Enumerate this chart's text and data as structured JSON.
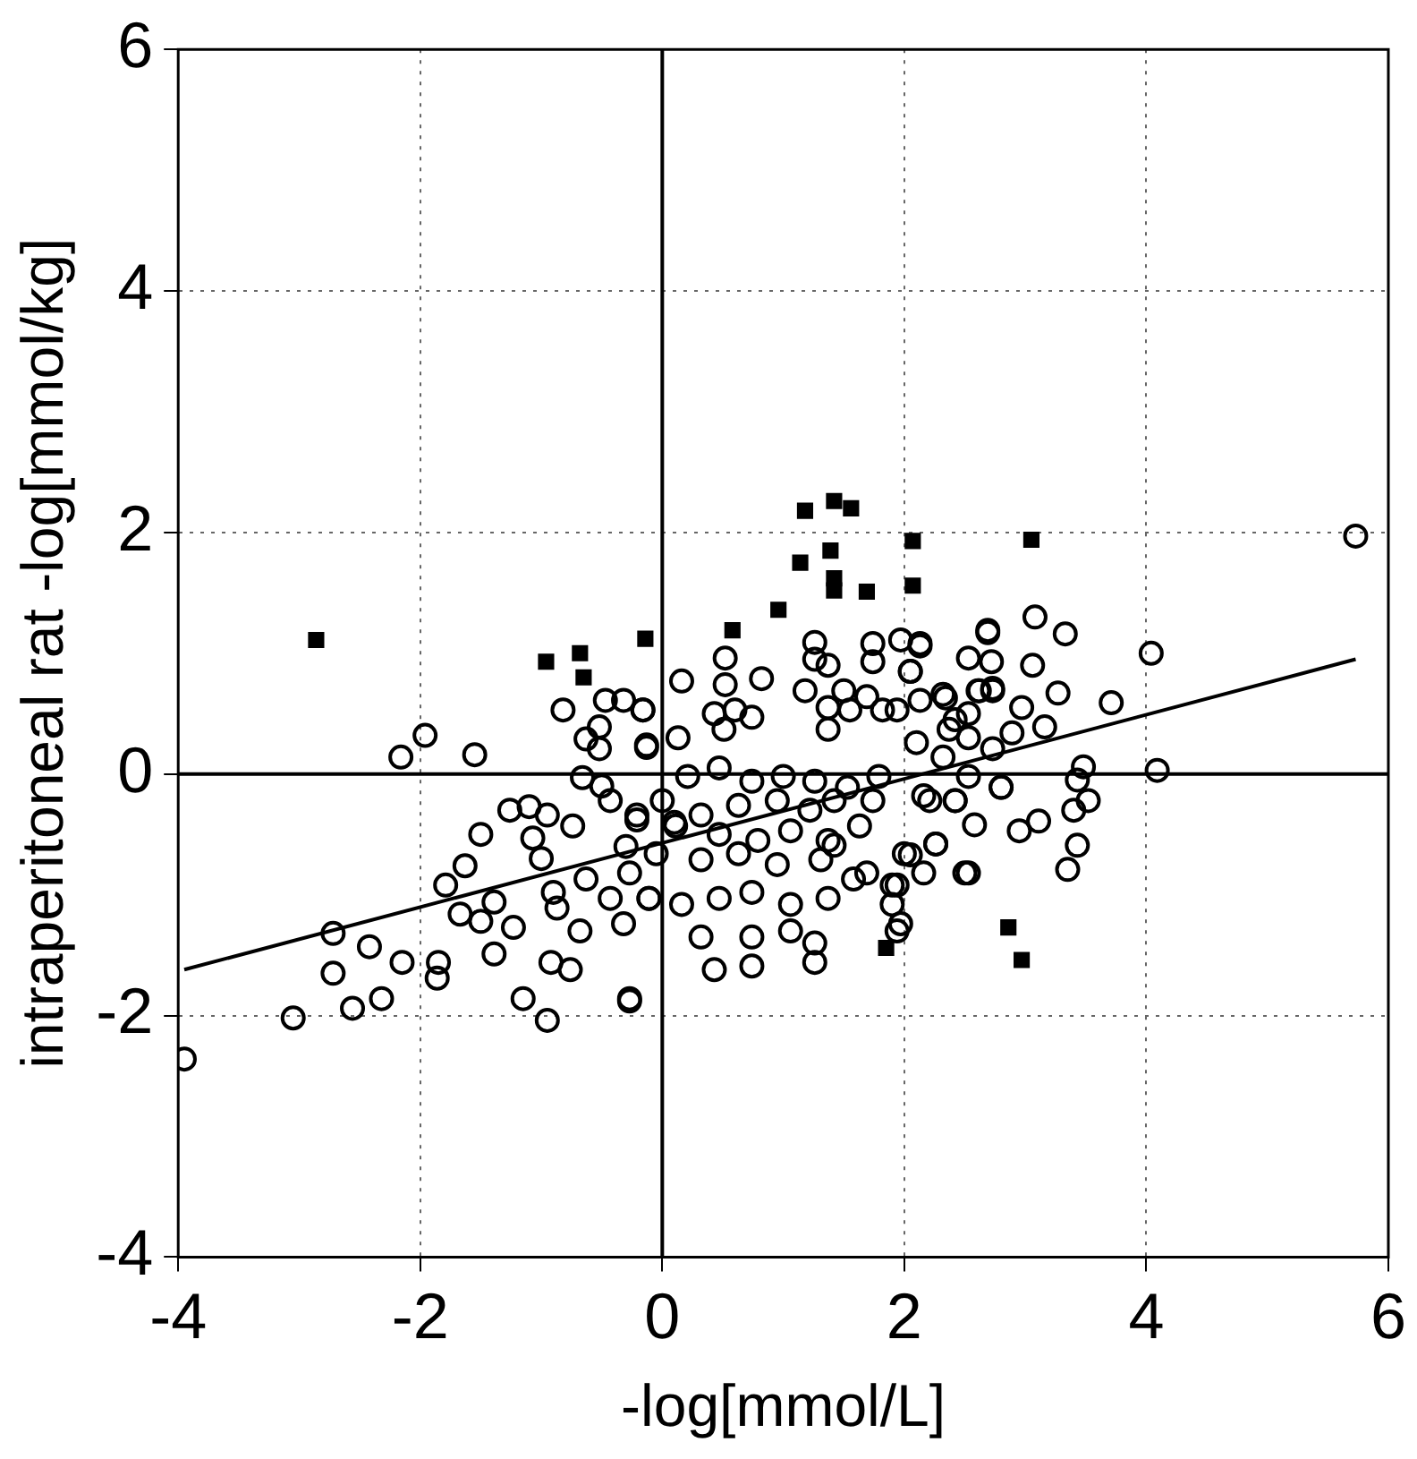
{
  "chart_data": {
    "type": "scatter",
    "xlabel": "-log[mmol/L]",
    "ylabel": "intraperitoneal rat -log[mmol/kg]",
    "xlim": [
      -4,
      6
    ],
    "xticks": [
      -4,
      -2,
      0,
      2,
      4,
      6
    ],
    "ylim": [
      -4,
      6
    ],
    "yticks": [
      -4,
      -2,
      0,
      2,
      4,
      6
    ],
    "grid": true,
    "legend": false,
    "series": [
      {
        "type": "scatter",
        "marker": "circle",
        "color": "#000000",
        "x": [
          -1.96,
          -2.16,
          -1.55,
          -3.95,
          -3.05,
          -2.72,
          -2.42,
          -2.72,
          -2.56,
          -2.32,
          -2.15,
          -1.85,
          -1.86,
          -1.67,
          -1.5,
          -1.79,
          -1.63,
          -1.39,
          -1.23,
          -1.39,
          -1.26,
          -1.07,
          -1.1,
          -0.92,
          -0.76,
          -1.15,
          -0.95,
          -0.27,
          -0.82,
          -0.52,
          -0.63,
          -0.16,
          -0.13,
          -0.47,
          -0.32,
          -0.52,
          -0.66,
          -0.95,
          -0.74,
          -0.43,
          -0.21,
          -0.9,
          -0.63,
          -0.43,
          -0.32,
          -0.11,
          -0.68,
          -0.87,
          0.16,
          0.52,
          0.52,
          0.82,
          1.26,
          1.26,
          1.37,
          1.18,
          1.74,
          1.74,
          1.97,
          2.13,
          2.05,
          1.5,
          1.69,
          1.37,
          1.55,
          1.82,
          1.94,
          2.13,
          2.32,
          2.69,
          2.53,
          2.72,
          2.61,
          2.73,
          -0.16,
          -0.13,
          0.13,
          0.43,
          0.6,
          0.51,
          0.74,
          1.37,
          2.1,
          2.32,
          2.42,
          2.53,
          2.73,
          0.21,
          0.47,
          0.74,
          1.0,
          1.26,
          1.53,
          1.79,
          0,
          0.32,
          0.63,
          0.95,
          1.22,
          1.42,
          1.74,
          2.16,
          2.42,
          2.8,
          -0.21,
          0.11,
          0.47,
          0.79,
          1.06,
          1.37,
          1.63,
          -0.05,
          0.32,
          0.63,
          0.95,
          1.31,
          1.42,
          1.69,
          2.0,
          2.26,
          2.16,
          2.53,
          -0.27,
          -0.11,
          0.16,
          0.47,
          0.74,
          1.06,
          1.37,
          1.58,
          1.9,
          1.9,
          0.32,
          0.74,
          1.06,
          1.26,
          1.94,
          0.43,
          0.74,
          1.26,
          -0.27,
          5.73,
          4.04,
          4.09,
          3.71,
          3.27,
          3.08,
          3.33,
          2.69,
          3.06,
          2.73,
          2.97,
          2.62,
          2.53,
          2.34,
          2.05,
          2.13,
          2.37,
          3.16,
          2.89,
          3.48,
          3.43,
          3.52,
          3.4,
          3.11,
          2.95,
          3.43,
          3.35,
          2.8,
          2.53,
          2.21,
          2.42,
          2.58,
          2.26,
          2.05,
          2.5,
          1.94,
          1.97,
          -0.5,
          -1.5,
          -0.3,
          -1.0,
          0.1
        ],
        "values": [
          0.32,
          0.14,
          0.16,
          -2.36,
          -2.02,
          -1.32,
          -1.43,
          -1.65,
          -1.94,
          -1.86,
          -1.56,
          -1.56,
          -1.69,
          -1.16,
          -1.22,
          -0.92,
          -0.76,
          -1.06,
          -1.27,
          -1.49,
          -0.3,
          -0.53,
          -0.27,
          -1.56,
          -1.62,
          -1.86,
          -2.04,
          -1.86,
          0.53,
          0.39,
          0.29,
          0.53,
          0.24,
          0.61,
          0.61,
          0.21,
          -0.03,
          -0.34,
          -0.43,
          -0.22,
          -0.34,
          -0.98,
          -0.87,
          -1.03,
          -1.24,
          -1.03,
          -1.3,
          -1.11,
          0.77,
          0.96,
          0.74,
          0.79,
          1.09,
          0.95,
          0.9,
          0.69,
          1.08,
          0.93,
          1.11,
          1.06,
          0.85,
          0.69,
          0.64,
          0.55,
          0.53,
          0.53,
          0.53,
          0.61,
          0.66,
          1.17,
          0.96,
          0.93,
          0.69,
          0.69,
          0.53,
          0.22,
          0.3,
          0.5,
          0.53,
          0.37,
          0.47,
          0.37,
          0.26,
          0.14,
          0.45,
          0.3,
          0.21,
          -0.02,
          0.05,
          -0.06,
          -0.02,
          -0.06,
          -0.11,
          -0.02,
          -0.22,
          -0.34,
          -0.26,
          -0.22,
          -0.3,
          -0.22,
          -0.22,
          -0.18,
          -0.22,
          -0.11,
          -0.38,
          -0.43,
          -0.5,
          -0.55,
          -0.47,
          -0.55,
          -0.43,
          -0.66,
          -0.71,
          -0.66,
          -0.75,
          -0.71,
          -0.59,
          -0.82,
          -0.66,
          -0.58,
          -0.82,
          -0.82,
          -0.82,
          -1.03,
          -1.08,
          -1.03,
          -0.98,
          -1.08,
          -1.03,
          -0.87,
          -0.92,
          -1.08,
          -1.35,
          -1.35,
          -1.3,
          -1.4,
          -1.3,
          -1.62,
          -1.59,
          -1.56,
          -1.88,
          1.97,
          1.0,
          0.03,
          0.59,
          0.67,
          1.3,
          1.16,
          1.19,
          0.9,
          0.71,
          0.55,
          0.69,
          0.5,
          0.63,
          0.85,
          1.08,
          0.37,
          0.39,
          0.34,
          0.06,
          -0.05,
          -0.22,
          -0.3,
          -0.39,
          -0.47,
          -0.59,
          -0.79,
          -0.11,
          -0.02,
          -0.22,
          -0.22,
          -0.42,
          -0.58,
          -0.67,
          -0.82,
          -0.92,
          -1.24,
          -0.1,
          -0.5,
          -0.6,
          -0.7,
          -0.4
        ]
      },
      {
        "type": "scatter",
        "marker": "square",
        "color": "#000000",
        "x": [
          -2.86,
          -0.96,
          -0.68,
          -0.65,
          -0.14,
          0.58,
          0.96,
          1.18,
          1.42,
          1.56,
          1.39,
          1.14,
          1.42,
          1.42,
          1.69,
          2.07,
          2.07,
          3.05,
          1.85,
          2.86,
          2.97
        ],
        "values": [
          1.11,
          0.93,
          1.0,
          0.8,
          1.12,
          1.19,
          1.36,
          2.18,
          2.26,
          2.2,
          1.85,
          1.75,
          1.62,
          1.52,
          1.51,
          1.93,
          1.56,
          1.94,
          -1.44,
          -1.27,
          -1.54
        ]
      },
      {
        "type": "line",
        "color": "#000000",
        "x": [
          -3.95,
          5.73
        ],
        "values": [
          -1.62,
          0.95
        ]
      }
    ]
  }
}
